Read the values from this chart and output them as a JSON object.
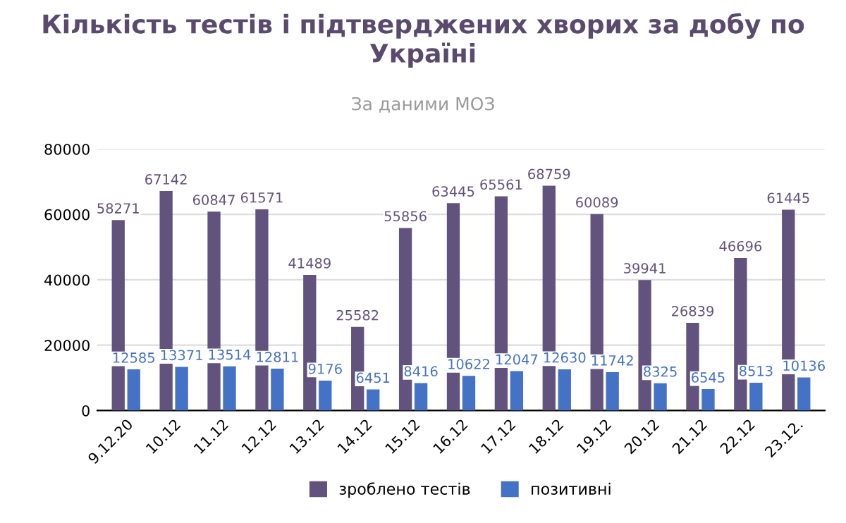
{
  "chart_data": {
    "type": "bar",
    "title": "Кількість тестів і підтверджених хворих за добу по Україні",
    "subtitle": "За даними МОЗ",
    "categories": [
      "9.12.20",
      "10.12",
      "11.12",
      "12.12",
      "13.12",
      "14.12",
      "15.12",
      "16.12",
      "17.12",
      "18.12",
      "19.12",
      "20.12",
      "21.12",
      "22.12",
      "23.12."
    ],
    "series": [
      {
        "name": "зроблено тестів",
        "color": "#62527e",
        "values": [
          58271,
          67142,
          60847,
          61571,
          41489,
          25582,
          55856,
          63445,
          65561,
          68759,
          60089,
          39941,
          26839,
          46696,
          61445
        ]
      },
      {
        "name": "позитивні",
        "color": "#4472c4",
        "values": [
          12585,
          13371,
          13514,
          12811,
          9176,
          6451,
          8416,
          10622,
          12047,
          12630,
          11742,
          8325,
          6545,
          8513,
          10136
        ]
      }
    ],
    "ylim": [
      0,
      80000
    ],
    "yticks": [
      0,
      20000,
      40000,
      60000,
      80000
    ],
    "grid": "y",
    "legend": "bottom",
    "data_labels": true
  }
}
